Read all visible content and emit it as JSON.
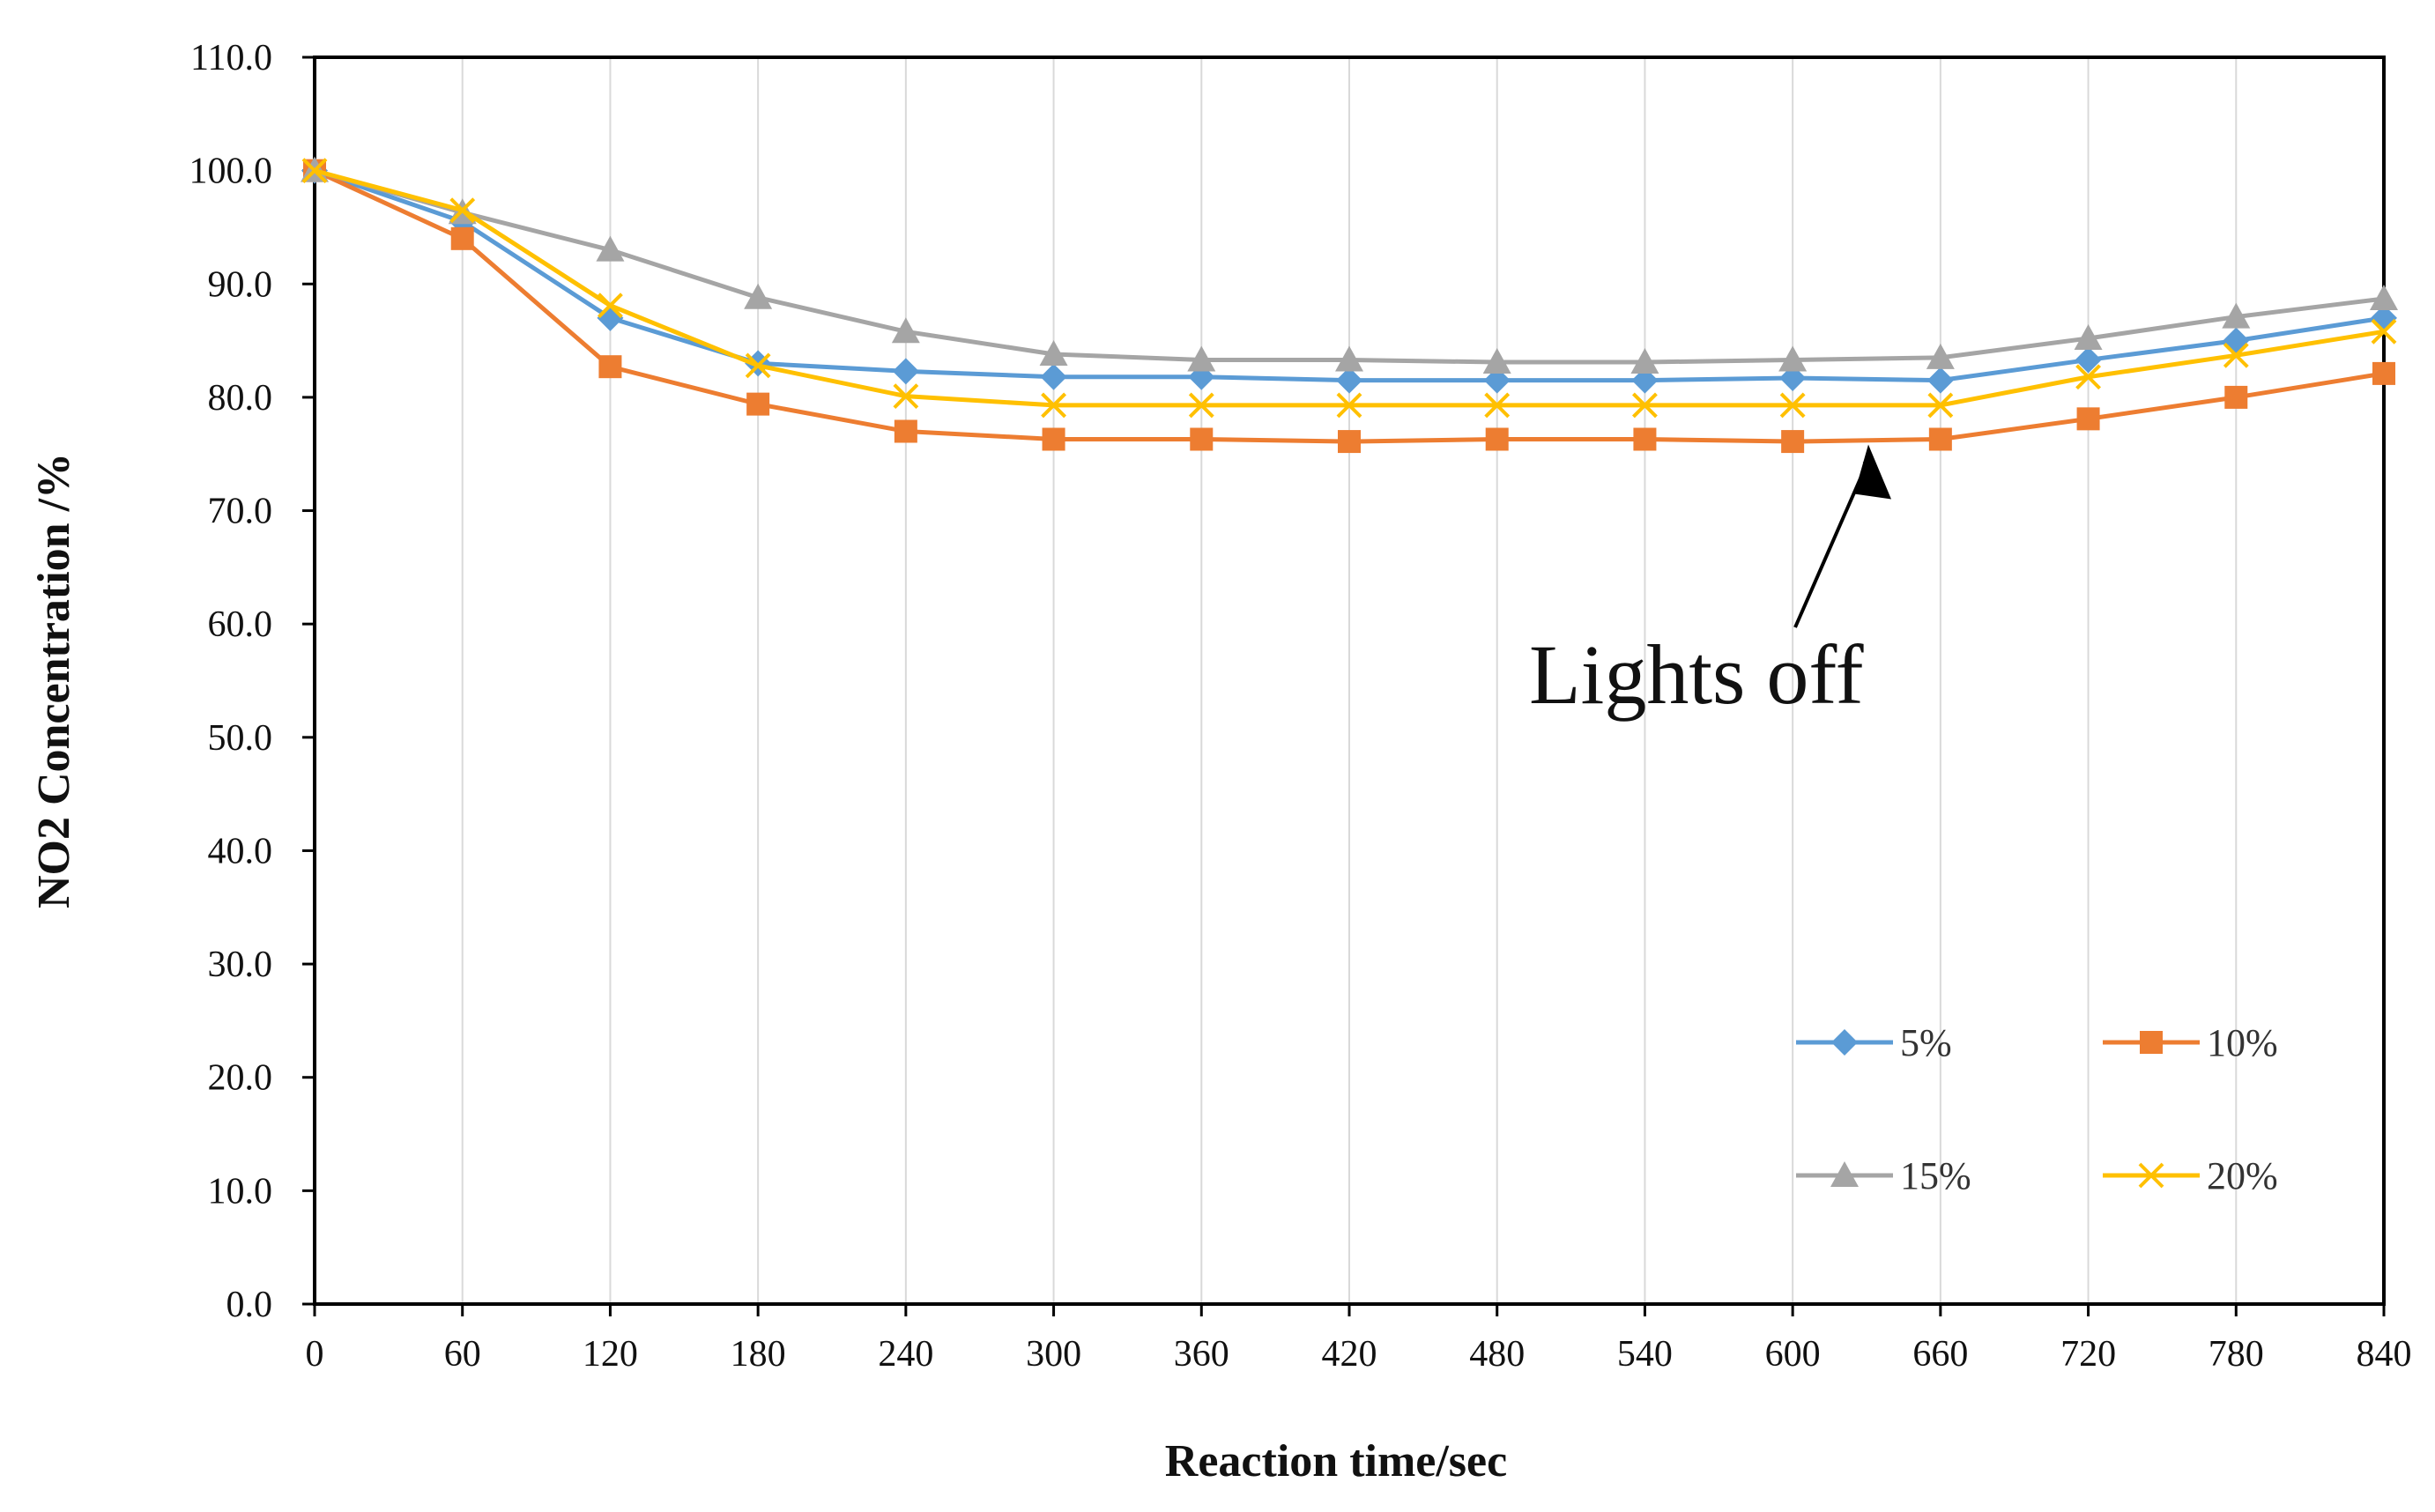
{
  "chart_data": {
    "type": "line",
    "title": "",
    "xlabel": "Reaction time/sec",
    "ylabel": "NO2 Concentration /%",
    "x": [
      0,
      60,
      120,
      180,
      240,
      300,
      360,
      420,
      480,
      540,
      600,
      660,
      720,
      780,
      840
    ],
    "x_tick_labels": [
      "0",
      "60",
      "120",
      "180",
      "240",
      "300",
      "360",
      "420",
      "480",
      "540",
      "600",
      "660",
      "720",
      "780",
      "840"
    ],
    "ylim": [
      0,
      110
    ],
    "y_ticks": [
      0,
      10,
      20,
      30,
      40,
      50,
      60,
      70,
      80,
      90,
      100,
      110
    ],
    "y_tick_labels": [
      "0.0",
      "10.0",
      "20.0",
      "30.0",
      "40.0",
      "50.0",
      "60.0",
      "70.0",
      "80.0",
      "90.0",
      "100.0",
      "110.0"
    ],
    "grid": "vertical",
    "legend_position": "bottom-right",
    "series": [
      {
        "name": "5%",
        "color": "#5b9bd5",
        "marker": "diamond",
        "values": [
          100.0,
          95.5,
          87.0,
          83.0,
          82.3,
          81.8,
          81.8,
          81.5,
          81.5,
          81.5,
          81.7,
          81.5,
          83.3,
          85.0,
          87.0
        ]
      },
      {
        "name": "10%",
        "color": "#ed7d31",
        "marker": "square",
        "values": [
          100.0,
          94.0,
          82.7,
          79.4,
          77.0,
          76.3,
          76.3,
          76.1,
          76.3,
          76.3,
          76.1,
          76.3,
          78.1,
          80.0,
          82.1
        ]
      },
      {
        "name": "15%",
        "color": "#a5a5a5",
        "marker": "triangle",
        "values": [
          100.0,
          96.3,
          93.0,
          88.8,
          85.8,
          83.8,
          83.3,
          83.3,
          83.1,
          83.1,
          83.3,
          83.5,
          85.2,
          87.1,
          88.7
        ]
      },
      {
        "name": "20%",
        "color": "#ffc000",
        "marker": "x",
        "values": [
          100.0,
          96.5,
          88.1,
          82.8,
          80.1,
          79.3,
          79.3,
          79.3,
          79.3,
          79.3,
          79.3,
          79.3,
          81.8,
          83.7,
          85.8
        ]
      }
    ],
    "annotations": [
      {
        "text": "Lights off",
        "arrow_to_x": 630,
        "arrow_to_y": 76.3
      }
    ]
  }
}
